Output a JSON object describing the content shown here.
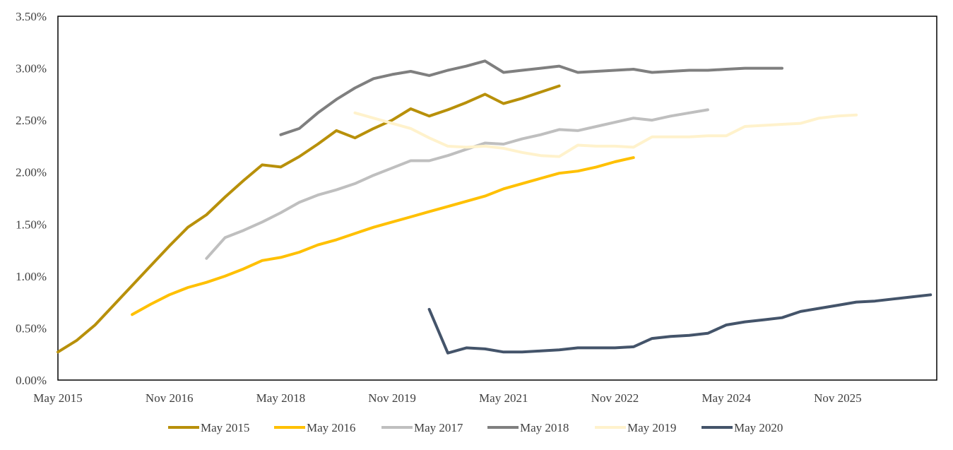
{
  "chart_data": {
    "type": "line",
    "title": "",
    "xlabel": "",
    "ylabel": "",
    "x_axis": {
      "min": "2015-05",
      "max": "2027-03",
      "tick_dates": [
        "2015-05",
        "2016-11",
        "2018-05",
        "2019-11",
        "2021-05",
        "2022-11",
        "2024-05",
        "2025-11"
      ],
      "tick_labels": [
        "May 2015",
        "Nov 2016",
        "May 2018",
        "Nov 2019",
        "May 2021",
        "Nov 2022",
        "May 2024",
        "Nov 2025"
      ]
    },
    "y_axis": {
      "min": 0,
      "max": 0.035,
      "ticks": [
        0,
        0.005,
        0.01,
        0.015,
        0.02,
        0.025,
        0.03,
        0.035
      ],
      "tick_labels": [
        "0.00%",
        "0.50%",
        "1.00%",
        "1.50%",
        "2.00%",
        "2.50%",
        "3.00%",
        "3.50%"
      ]
    },
    "grid": false,
    "legend_position": "bottom",
    "series": [
      {
        "name": "May 2015",
        "color": "#B8900A",
        "points": [
          [
            "2015-05",
            0.0027
          ],
          [
            "2015-08",
            0.0038
          ],
          [
            "2015-11",
            0.0053
          ],
          [
            "2016-02",
            0.0072
          ],
          [
            "2016-05",
            0.0091
          ],
          [
            "2016-08",
            0.011
          ],
          [
            "2016-11",
            0.0129
          ],
          [
            "2017-02",
            0.0147
          ],
          [
            "2017-05",
            0.0159
          ],
          [
            "2017-08",
            0.0176
          ],
          [
            "2017-11",
            0.0192
          ],
          [
            "2018-02",
            0.0207
          ],
          [
            "2018-05",
            0.0205
          ],
          [
            "2018-08",
            0.0215
          ],
          [
            "2018-11",
            0.0227
          ],
          [
            "2019-02",
            0.024
          ],
          [
            "2019-05",
            0.0233
          ],
          [
            "2019-08",
            0.0242
          ],
          [
            "2019-11",
            0.025
          ],
          [
            "2020-02",
            0.0261
          ],
          [
            "2020-05",
            0.0254
          ],
          [
            "2020-08",
            0.026
          ],
          [
            "2020-11",
            0.0267
          ],
          [
            "2021-02",
            0.0275
          ],
          [
            "2021-05",
            0.0266
          ],
          [
            "2021-08",
            0.0271
          ],
          [
            "2021-11",
            0.0277
          ],
          [
            "2022-02",
            0.0283
          ]
        ]
      },
      {
        "name": "May 2016",
        "color": "#FFC000",
        "points": [
          [
            "2016-05",
            0.0063
          ],
          [
            "2016-08",
            0.0073
          ],
          [
            "2016-11",
            0.0082
          ],
          [
            "2017-02",
            0.0089
          ],
          [
            "2017-05",
            0.0094
          ],
          [
            "2017-08",
            0.01
          ],
          [
            "2017-11",
            0.0107
          ],
          [
            "2018-02",
            0.0115
          ],
          [
            "2018-05",
            0.0118
          ],
          [
            "2018-08",
            0.0123
          ],
          [
            "2018-11",
            0.013
          ],
          [
            "2019-02",
            0.0135
          ],
          [
            "2019-05",
            0.0141
          ],
          [
            "2019-08",
            0.0147
          ],
          [
            "2019-11",
            0.0152
          ],
          [
            "2020-02",
            0.0157
          ],
          [
            "2020-05",
            0.0162
          ],
          [
            "2020-08",
            0.0167
          ],
          [
            "2020-11",
            0.0172
          ],
          [
            "2021-02",
            0.0177
          ],
          [
            "2021-05",
            0.0184
          ],
          [
            "2021-08",
            0.0189
          ],
          [
            "2021-11",
            0.0194
          ],
          [
            "2022-02",
            0.0199
          ],
          [
            "2022-05",
            0.0201
          ],
          [
            "2022-08",
            0.0205
          ],
          [
            "2022-11",
            0.021
          ],
          [
            "2023-02",
            0.0214
          ]
        ]
      },
      {
        "name": "May 2017",
        "color": "#BFBFBF",
        "points": [
          [
            "2017-05",
            0.0117
          ],
          [
            "2017-08",
            0.0137
          ],
          [
            "2017-11",
            0.0144
          ],
          [
            "2018-02",
            0.0152
          ],
          [
            "2018-05",
            0.0161
          ],
          [
            "2018-08",
            0.0171
          ],
          [
            "2018-11",
            0.0178
          ],
          [
            "2019-02",
            0.0183
          ],
          [
            "2019-05",
            0.0189
          ],
          [
            "2019-08",
            0.0197
          ],
          [
            "2019-11",
            0.0204
          ],
          [
            "2020-02",
            0.0211
          ],
          [
            "2020-05",
            0.0211
          ],
          [
            "2020-08",
            0.0216
          ],
          [
            "2020-11",
            0.0222
          ],
          [
            "2021-02",
            0.0228
          ],
          [
            "2021-05",
            0.0227
          ],
          [
            "2021-08",
            0.0232
          ],
          [
            "2021-11",
            0.0236
          ],
          [
            "2022-02",
            0.0241
          ],
          [
            "2022-05",
            0.024
          ],
          [
            "2022-08",
            0.0244
          ],
          [
            "2022-11",
            0.0248
          ],
          [
            "2023-02",
            0.0252
          ],
          [
            "2023-05",
            0.025
          ],
          [
            "2023-08",
            0.0254
          ],
          [
            "2023-11",
            0.0257
          ],
          [
            "2024-02",
            0.026
          ]
        ]
      },
      {
        "name": "May 2018",
        "color": "#7F7F7F",
        "points": [
          [
            "2018-05",
            0.0236
          ],
          [
            "2018-08",
            0.0242
          ],
          [
            "2018-11",
            0.0257
          ],
          [
            "2019-02",
            0.027
          ],
          [
            "2019-05",
            0.0281
          ],
          [
            "2019-08",
            0.029
          ],
          [
            "2019-11",
            0.0294
          ],
          [
            "2020-02",
            0.0297
          ],
          [
            "2020-05",
            0.0293
          ],
          [
            "2020-08",
            0.0298
          ],
          [
            "2020-11",
            0.0302
          ],
          [
            "2021-02",
            0.0307
          ],
          [
            "2021-05",
            0.0296
          ],
          [
            "2021-08",
            0.0298
          ],
          [
            "2021-11",
            0.03
          ],
          [
            "2022-02",
            0.0302
          ],
          [
            "2022-05",
            0.0296
          ],
          [
            "2022-08",
            0.0297
          ],
          [
            "2022-11",
            0.0298
          ],
          [
            "2023-02",
            0.0299
          ],
          [
            "2023-05",
            0.0296
          ],
          [
            "2023-08",
            0.0297
          ],
          [
            "2023-11",
            0.0298
          ],
          [
            "2024-02",
            0.0298
          ],
          [
            "2024-05",
            0.0299
          ],
          [
            "2024-08",
            0.03
          ],
          [
            "2024-11",
            0.03
          ],
          [
            "2025-02",
            0.03
          ]
        ]
      },
      {
        "name": "May 2019",
        "color": "#FFF2CC",
        "points": [
          [
            "2019-05",
            0.0257
          ],
          [
            "2019-08",
            0.0252
          ],
          [
            "2019-11",
            0.0247
          ],
          [
            "2020-02",
            0.0242
          ],
          [
            "2020-05",
            0.0233
          ],
          [
            "2020-08",
            0.0225
          ],
          [
            "2020-11",
            0.0224
          ],
          [
            "2021-02",
            0.0225
          ],
          [
            "2021-05",
            0.0223
          ],
          [
            "2021-08",
            0.0219
          ],
          [
            "2021-11",
            0.0216
          ],
          [
            "2022-02",
            0.0215
          ],
          [
            "2022-05",
            0.0226
          ],
          [
            "2022-08",
            0.0225
          ],
          [
            "2022-11",
            0.0225
          ],
          [
            "2023-02",
            0.0224
          ],
          [
            "2023-05",
            0.0234
          ],
          [
            "2023-08",
            0.0234
          ],
          [
            "2023-11",
            0.0234
          ],
          [
            "2024-02",
            0.0235
          ],
          [
            "2024-05",
            0.0235
          ],
          [
            "2024-08",
            0.0244
          ],
          [
            "2024-11",
            0.0245
          ],
          [
            "2025-02",
            0.0246
          ],
          [
            "2025-05",
            0.0247
          ],
          [
            "2025-08",
            0.0252
          ],
          [
            "2025-11",
            0.0254
          ],
          [
            "2026-02",
            0.0255
          ]
        ]
      },
      {
        "name": "May 2020",
        "color": "#44546A",
        "points": [
          [
            "2020-05",
            0.0068
          ],
          [
            "2020-08",
            0.0026
          ],
          [
            "2020-11",
            0.0031
          ],
          [
            "2021-02",
            0.003
          ],
          [
            "2021-05",
            0.0027
          ],
          [
            "2021-08",
            0.0027
          ],
          [
            "2021-11",
            0.0028
          ],
          [
            "2022-02",
            0.0029
          ],
          [
            "2022-05",
            0.0031
          ],
          [
            "2022-08",
            0.0031
          ],
          [
            "2022-11",
            0.0031
          ],
          [
            "2023-02",
            0.0032
          ],
          [
            "2023-05",
            0.004
          ],
          [
            "2023-08",
            0.0042
          ],
          [
            "2023-11",
            0.0043
          ],
          [
            "2024-02",
            0.0045
          ],
          [
            "2024-05",
            0.0053
          ],
          [
            "2024-08",
            0.0056
          ],
          [
            "2024-11",
            0.0058
          ],
          [
            "2025-02",
            0.006
          ],
          [
            "2025-05",
            0.0066
          ],
          [
            "2025-08",
            0.0069
          ],
          [
            "2025-11",
            0.0072
          ],
          [
            "2026-02",
            0.0075
          ],
          [
            "2026-05",
            0.0076
          ],
          [
            "2026-08",
            0.0078
          ],
          [
            "2026-11",
            0.008
          ],
          [
            "2027-02",
            0.0082
          ]
        ]
      }
    ]
  }
}
